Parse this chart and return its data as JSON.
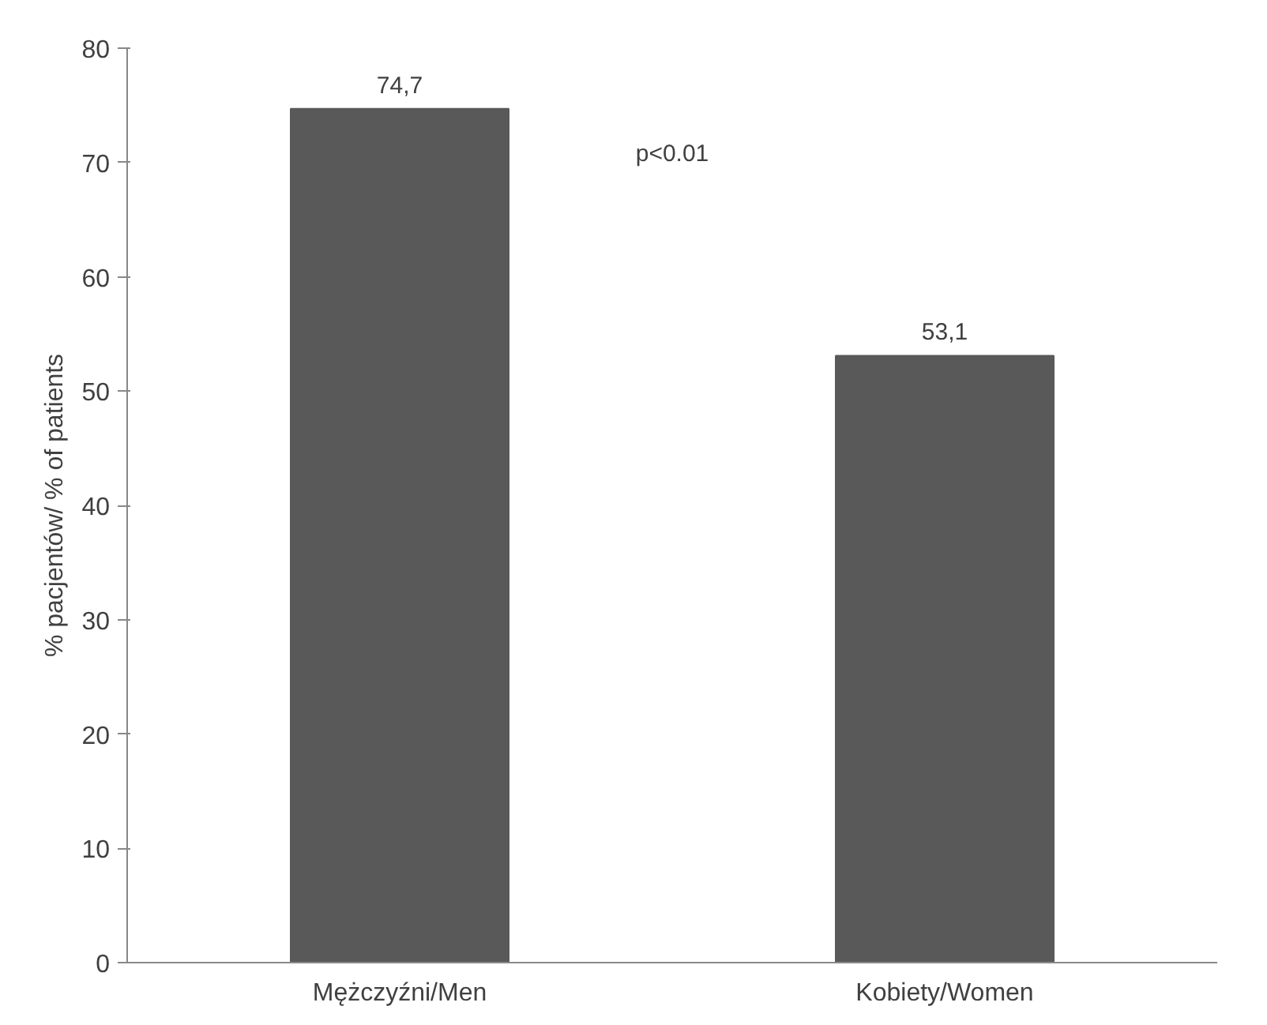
{
  "chart_data": {
    "type": "bar",
    "categories": [
      "Mężczyźni/Men",
      "Kobiety/Women"
    ],
    "values": [
      74.7,
      53.1
    ],
    "value_labels": [
      "74,7",
      "53,1"
    ],
    "color": "#595959",
    "ylabel": "% pacjentów/ % of patients",
    "ylim": [
      0,
      80
    ],
    "yticks": [
      0,
      10,
      20,
      30,
      40,
      50,
      60,
      70,
      80
    ],
    "annotations": [
      "p<0.01"
    ],
    "grid": false
  }
}
